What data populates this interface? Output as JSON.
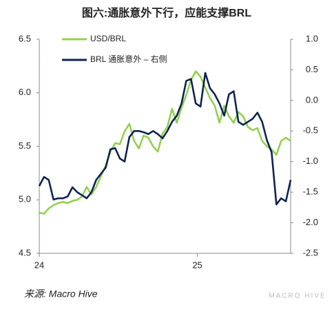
{
  "chart_data": {
    "type": "line",
    "title": "图六:通胀意外下行，应能支撑BRL",
    "source": "来源: Macro Hive",
    "watermark": "MACRO HIVE",
    "x": [
      24.0,
      24.03,
      24.06,
      24.09,
      24.12,
      24.15,
      24.18,
      24.21,
      24.24,
      24.27,
      24.3,
      24.33,
      24.36,
      24.39,
      24.42,
      24.45,
      24.48,
      24.51,
      24.54,
      24.57,
      24.6,
      24.63,
      24.66,
      24.69,
      24.72,
      24.75,
      24.78,
      24.81,
      24.84,
      24.87,
      24.9,
      24.93,
      24.96,
      24.99,
      25.02,
      25.05,
      25.08,
      25.11,
      25.14,
      25.17,
      25.2,
      25.23,
      25.26,
      25.29,
      25.32,
      25.35,
      25.38,
      25.41,
      25.44,
      25.47,
      25.5,
      25.53,
      25.56,
      25.59
    ],
    "xlim": [
      24,
      25.59
    ],
    "xticks": [
      24,
      25
    ],
    "ylim": [
      4.5,
      6.5
    ],
    "yticks": [
      4.5,
      {
        "value": 5.0,
        "label": "5.0"
      },
      5.5,
      {
        "value": 6.0,
        "label": "6.0"
      },
      6.5
    ],
    "y2lim": [
      -2.5,
      1.0
    ],
    "y2ticks": [
      {
        "value": 1.0,
        "label": "1.0"
      },
      0.5,
      {
        "value": 0.0,
        "label": "0.0"
      },
      -0.5,
      {
        "value": -1.0,
        "label": "-1.0"
      },
      -1.5,
      {
        "value": -2.0,
        "label": "-2.0"
      },
      -2.5
    ],
    "grid": false,
    "legend": "top-left",
    "series": [
      {
        "name": "USD/BRL",
        "color": "#92d050",
        "values": [
          4.88,
          4.87,
          4.92,
          4.95,
          4.97,
          4.98,
          4.97,
          4.99,
          5.0,
          5.03,
          5.12,
          5.05,
          5.12,
          5.22,
          5.32,
          5.45,
          5.53,
          5.52,
          5.64,
          5.71,
          5.55,
          5.48,
          5.6,
          5.58,
          5.5,
          5.45,
          5.62,
          5.68,
          5.85,
          5.72,
          5.86,
          5.98,
          6.12,
          6.2,
          6.15,
          6.05,
          5.95,
          5.88,
          5.72,
          5.88,
          5.78,
          5.72,
          5.82,
          5.78,
          5.68,
          5.65,
          5.67,
          5.55,
          5.5,
          5.47,
          5.42,
          5.55,
          5.58,
          5.55
        ]
      },
      {
        "name": "BRL 通胀意外 – 右侧",
        "color": "#0e2350",
        "axis": "y2",
        "values": [
          -1.4,
          -1.25,
          -1.3,
          -1.62,
          -1.6,
          -1.6,
          -1.57,
          -1.42,
          -1.5,
          -1.55,
          -1.6,
          -1.5,
          -1.3,
          -1.2,
          -1.1,
          -0.8,
          -0.78,
          -0.95,
          -1.0,
          -0.6,
          -0.5,
          -0.5,
          -0.52,
          -0.55,
          -0.5,
          -0.55,
          -0.62,
          -0.5,
          -0.35,
          -0.25,
          -0.05,
          0.32,
          0.35,
          -0.05,
          -0.1,
          0.45,
          0.2,
          0.1,
          -0.05,
          -0.25,
          0.1,
          0.15,
          -0.35,
          -0.4,
          -0.35,
          -0.3,
          -0.2,
          -0.35,
          -0.65,
          -0.85,
          -1.7,
          -1.6,
          -1.65,
          -1.3
        ]
      }
    ]
  }
}
